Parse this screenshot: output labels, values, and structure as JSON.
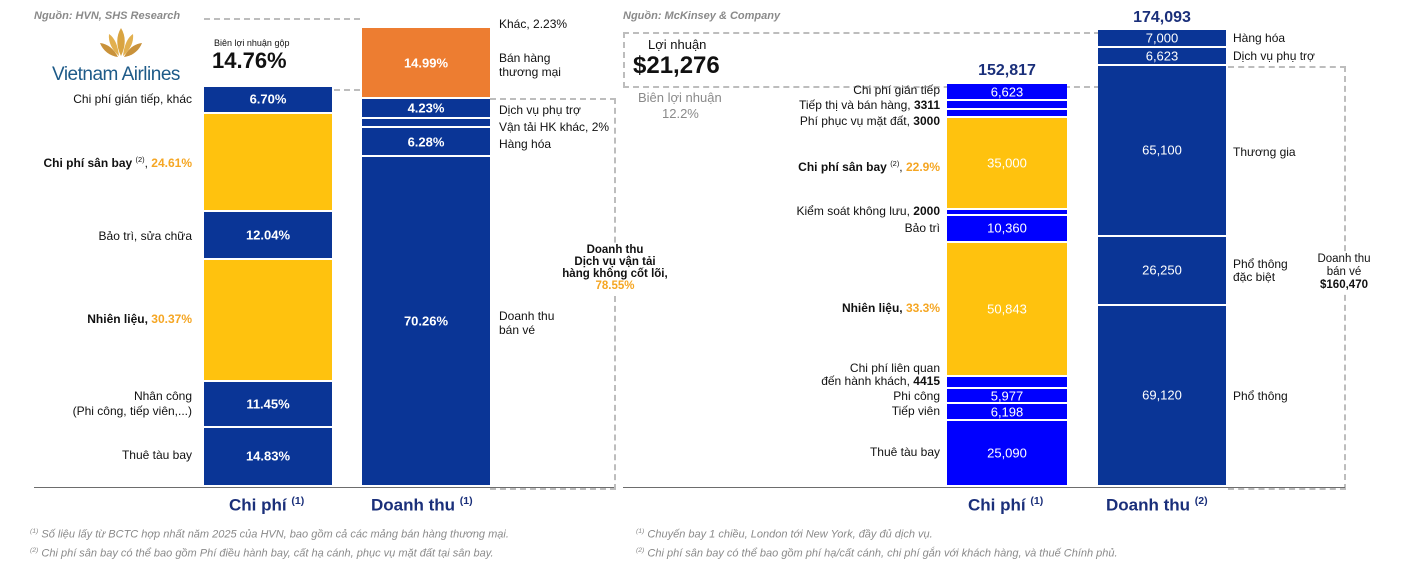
{
  "colors": {
    "navy": "#0a3596",
    "yellow": "#ffc20e",
    "orange": "#ed7d31",
    "blue": "#0000ff",
    "title": "#1a2f7a",
    "label_orange": "#f5a623"
  },
  "left": {
    "source": "Nguồn: HVN, SHS Research",
    "logo_text": "Vietnam Airlines",
    "logo_icon": "lotus-icon",
    "margin_box": {
      "label": "Biên lợi nhuận gộp",
      "value": "14.76%"
    },
    "axis": {
      "cost": "Chi phí",
      "cost_note": "(1)",
      "revenue": "Doanh thu",
      "revenue_note": "(1)"
    },
    "cost_labels": [
      {
        "name": "Chi phí gián tiếp, khác",
        "pct": "",
        "sup": ""
      },
      {
        "name": "Chi phí sân bay",
        "pct": "24.61%",
        "sup": "(2)"
      },
      {
        "name": "Bảo trì, sửa chữa",
        "pct": "",
        "sup": ""
      },
      {
        "name": "Nhiên liệu,",
        "pct": "30.37%",
        "sup": ""
      },
      {
        "name": "Nhân công",
        "line2": "(Phi công, tiếp viên,...)"
      },
      {
        "name": "Thuê tàu bay"
      }
    ],
    "revenue_labels": {
      "other": "Khác, 2.23%",
      "retail": "Bán hàng",
      "retail2": "thương mại",
      "ancillary": "Dịch vụ phụ trợ",
      "other_transport": "Vận tải HK khác, 2%",
      "cargo": "Hàng hóa",
      "ticket": "Doanh thu",
      "ticket2": "bán vé",
      "noncore_1": "Doanh thu",
      "noncore_2": "Dịch vụ vận tải",
      "noncore_3": "hàng không cốt lõi,",
      "noncore_pct": "78.55%"
    },
    "footnotes": [
      {
        "sup": "(1)",
        "text": "Số liệu lấy từ BCTC hợp nhất năm 2025 của HVN, bao gồm cả các mảng bán hàng thương mại."
      },
      {
        "sup": "(2)",
        "text": "Chi phí sân bay có thể bao gồm Phí điều hành bay, cất hạ cánh, phục vụ mặt đất tại sân bay."
      }
    ]
  },
  "right": {
    "source": "Nguồn: McKinsey & Company",
    "profit_box": {
      "label": "Lợi nhuận",
      "value": "$21,276",
      "margin_label": "Biên lợi nhuận",
      "margin_value": "12.2%"
    },
    "totals": {
      "cost": "152,817",
      "revenue": "174,093"
    },
    "axis": {
      "cost": "Chi phí",
      "cost_note": "(1)",
      "revenue": "Doanh thu",
      "revenue_note": "(2)"
    },
    "cost_labels": {
      "indirect": "Chi phí gián tiếp",
      "marketing": "Tiếp thị và bán hàng,",
      "marketing_val": "3311",
      "ground": "Phí phục vụ mặt đất,",
      "ground_val": "3000",
      "airport": "Chi phí sân bay",
      "airport_sup": "(2)",
      "airport_pct": "22.9%",
      "atc": "Kiểm soát không lưu,",
      "atc_val": "2000",
      "maint": "Bảo trì",
      "fuel": "Nhiên liệu,",
      "fuel_pct": "33.3%",
      "pax1": "Chi phí liên quan",
      "pax2": "đến hành khách,",
      "pax_val": "4415",
      "pilots": "Phi công",
      "crew": "Tiếp viên",
      "lease": "Thuê tàu bay"
    },
    "revenue_labels": {
      "cargo": "Hàng hóa",
      "ancillary": "Dịch vụ phụ trợ",
      "business": "Thương gia",
      "premium1": "Phổ thông",
      "premium2": "đặc biệt",
      "economy": "Phổ thông",
      "ticket1": "Doanh thu",
      "ticket2": "bán vé",
      "ticket_val": "$160,470"
    },
    "footnotes": [
      {
        "sup": "(1)",
        "text": "Chuyến bay 1 chiều, London tới New York, đầy đủ dịch vụ."
      },
      {
        "sup": "(2)",
        "text": "Chi phí sân bay có thể bao gồm phí hạ/cất cánh, chi phí gắn với khách hàng, và thuế Chính phủ."
      }
    ]
  },
  "chart_data": [
    {
      "type": "bar",
      "stacked": true,
      "categories": [
        "Chi phí",
        "Doanh thu"
      ],
      "unit": "%",
      "cost": [
        {
          "name": "Chi phí gián tiếp, khác",
          "value": 6.7,
          "color": "navy",
          "label": "6.70%"
        },
        {
          "name": "Chi phí sân bay",
          "value": 24.61,
          "color": "yellow",
          "label": ""
        },
        {
          "name": "Bảo trì, sửa chữa",
          "value": 12.04,
          "color": "navy",
          "label": "12.04%"
        },
        {
          "name": "Nhiên liệu",
          "value": 30.37,
          "color": "yellow",
          "label": ""
        },
        {
          "name": "Nhân công (Phi công, tiếp viên,...)",
          "value": 11.45,
          "color": "navy",
          "label": "11.45%"
        },
        {
          "name": "Thuê tàu bay",
          "value": 14.83,
          "color": "navy",
          "label": "14.83%"
        }
      ],
      "gross_margin": 14.76,
      "revenue": [
        {
          "name": "Khác",
          "value": 2.23,
          "color": "none",
          "label": ""
        },
        {
          "name": "Bán hàng thương mại",
          "value": 14.99,
          "color": "orange",
          "label": "14.99%"
        },
        {
          "name": "Dịch vụ phụ trợ",
          "value": 4.23,
          "color": "navy",
          "label": "4.23%"
        },
        {
          "name": "Vận tải HK khác",
          "value": 2.0,
          "color": "navy",
          "label": ""
        },
        {
          "name": "Hàng hóa",
          "value": 6.28,
          "color": "navy",
          "label": "6.28%"
        },
        {
          "name": "Doanh thu bán vé",
          "value": 70.26,
          "color": "navy",
          "label": "70.26%"
        }
      ],
      "core_revenue_pct": 78.55
    },
    {
      "type": "bar",
      "stacked": true,
      "categories": [
        "Chi phí",
        "Doanh thu"
      ],
      "unit": "USD",
      "cost_total": 152817,
      "revenue_total": 174093,
      "profit": 21276,
      "margin_pct": 12.2,
      "cost": [
        {
          "name": "Chi phí gián tiếp",
          "value": 6623,
          "color": "blue",
          "label": "6,623"
        },
        {
          "name": "Tiếp thị và bán hàng",
          "value": 3311,
          "color": "blue",
          "label": ""
        },
        {
          "name": "Phí phục vụ mặt đất",
          "value": 3000,
          "color": "blue",
          "label": ""
        },
        {
          "name": "Chi phí sân bay",
          "value": 35000,
          "color": "yellow",
          "label": "35,000"
        },
        {
          "name": "Kiểm soát không lưu",
          "value": 2000,
          "color": "blue",
          "label": ""
        },
        {
          "name": "Bảo trì",
          "value": 10360,
          "color": "blue",
          "label": "10,360"
        },
        {
          "name": "Nhiên liệu",
          "value": 50843,
          "color": "yellow",
          "label": "50,843"
        },
        {
          "name": "Chi phí liên quan đến hành khách",
          "value": 4415,
          "color": "blue",
          "label": ""
        },
        {
          "name": "Phi công",
          "value": 5977,
          "color": "blue",
          "label": "5,977"
        },
        {
          "name": "Tiếp viên",
          "value": 6198,
          "color": "blue",
          "label": "6,198"
        },
        {
          "name": "Thuê tàu bay",
          "value": 25090,
          "color": "blue",
          "label": "25,090"
        }
      ],
      "revenue": [
        {
          "name": "Hàng hóa",
          "value": 7000,
          "color": "navy",
          "label": "7,000"
        },
        {
          "name": "Dịch vụ phụ trợ",
          "value": 6623,
          "color": "navy",
          "label": "6,623"
        },
        {
          "name": "Thương gia",
          "value": 65100,
          "color": "navy",
          "label": "65,100"
        },
        {
          "name": "Phổ thông đặc biệt",
          "value": 26250,
          "color": "navy",
          "label": "26,250"
        },
        {
          "name": "Phổ thông",
          "value": 69120,
          "color": "navy",
          "label": "69,120"
        }
      ],
      "ticket_revenue": 160470
    }
  ]
}
